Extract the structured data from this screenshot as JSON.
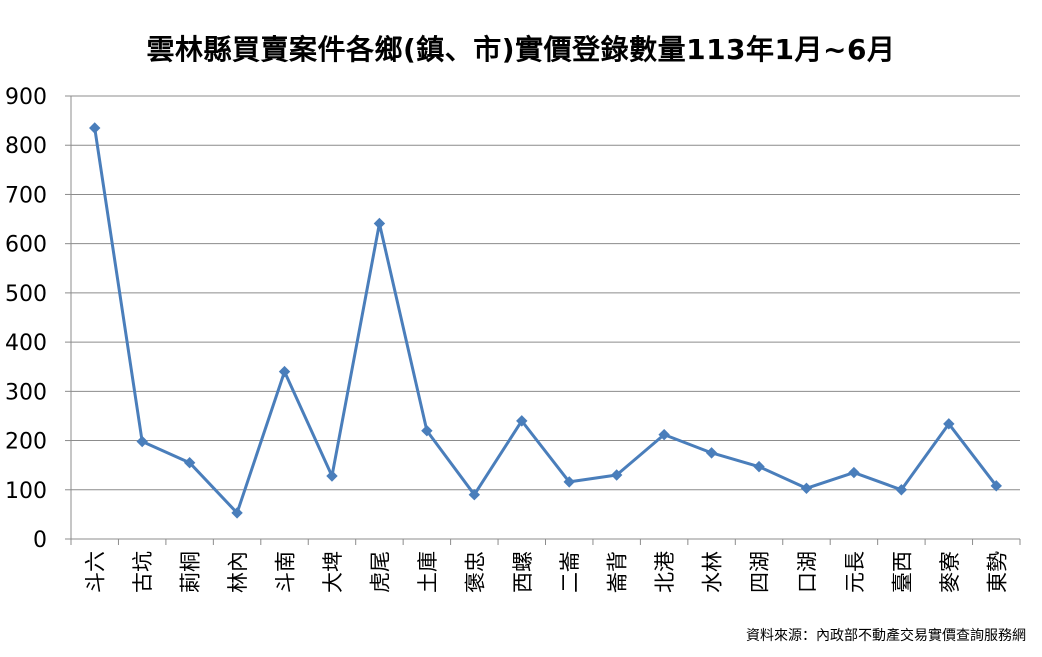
{
  "chart_data": {
    "type": "line",
    "title": "雲林縣買賣案件各鄉(鎮、市)實價登錄數量113年1月~6月",
    "xlabel": "",
    "ylabel": "",
    "ylim": [
      0,
      900
    ],
    "yticks": [
      0,
      100,
      200,
      300,
      400,
      500,
      600,
      700,
      800,
      900
    ],
    "grid": true,
    "legend": "none",
    "categories": [
      "斗六",
      "古坑",
      "莿桐",
      "林內",
      "斗南",
      "大埤",
      "虎尾",
      "土庫",
      "褒忠",
      "西螺",
      "二崙",
      "崙背",
      "北港",
      "水林",
      "四湖",
      "口湖",
      "元長",
      "臺西",
      "麥寮",
      "東勢"
    ],
    "series": [
      {
        "values": [
          835,
          198,
          155,
          53,
          340,
          128,
          641,
          220,
          90,
          240,
          116,
          130,
          212,
          175,
          147,
          103,
          135,
          100,
          234,
          108
        ],
        "color": "#4a7ebb"
      }
    ]
  },
  "source_note": "資料來源：內政部不動產交易實價查詢服務網",
  "colors": {
    "line": "#4a7ebb",
    "grid": "#8c8c8c",
    "axis": "#8c8c8c"
  }
}
